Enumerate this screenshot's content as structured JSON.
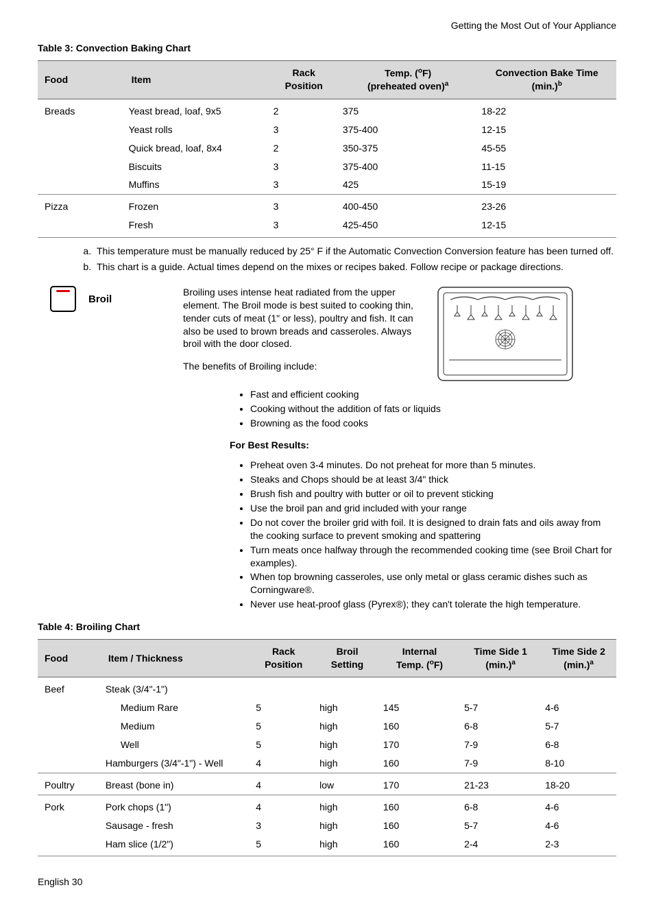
{
  "header": {
    "right": "Getting the Most Out of Your Appliance"
  },
  "table3": {
    "caption": "Table 3: Convection Baking Chart",
    "columns": [
      "Food",
      "Item",
      "Rack Position",
      "Temp. (°F) (preheated oven)",
      "Convection Bake Time (min.)"
    ],
    "col_sup": [
      "",
      "",
      "",
      "a",
      "b"
    ],
    "groups": [
      {
        "food": "Breads",
        "rows": [
          {
            "item": "Yeast bread, loaf, 9x5",
            "rack": "2",
            "temp": "375",
            "time": "18-22"
          },
          {
            "item": "Yeast rolls",
            "rack": "3",
            "temp": "375-400",
            "time": "12-15"
          },
          {
            "item": "Quick bread, loaf, 8x4",
            "rack": "2",
            "temp": "350-375",
            "time": "45-55"
          },
          {
            "item": "Biscuits",
            "rack": "3",
            "temp": "375-400",
            "time": "11-15"
          },
          {
            "item": "Muffins",
            "rack": "3",
            "temp": "425",
            "time": "15-19"
          }
        ]
      },
      {
        "food": "Pizza",
        "rows": [
          {
            "item": "Frozen",
            "rack": "3",
            "temp": "400-450",
            "time": "23-26"
          },
          {
            "item": "Fresh",
            "rack": "3",
            "temp": "425-450",
            "time": "12-15"
          }
        ]
      }
    ],
    "footnotes": [
      "This temperature must be manually reduced by 25° F if the Automatic Convection Conversion feature has been turned off.",
      "This chart is a guide. Actual times depend on the mixes or recipes baked. Follow recipe or package directions."
    ]
  },
  "broil": {
    "label": "Broil",
    "para1": "Broiling uses intense heat radiated from the upper element. The Broil mode is best suited to cooking thin, tender cuts of meat (1\" or less), poultry and fish. It can also be used to brown breads and casseroles. Always broil with the door closed.",
    "para2": "The benefits of Broiling include:",
    "benefits": [
      "Fast and efficient cooking",
      "Cooking without the addition of fats or liquids",
      "Browning as the food cooks"
    ],
    "best_heading": "For Best Results:",
    "best": [
      "Preheat oven 3-4 minutes. Do not preheat for more than 5 minutes.",
      "Steaks and Chops should be at least 3/4\" thick",
      "Brush fish and poultry with butter or oil to prevent sticking",
      "Use the broil pan and grid included with your range",
      "Do not cover the broiler grid with foil. It is designed to drain fats and oils away from the cooking surface to prevent smoking and spattering",
      "Turn meats once halfway through the recommended cooking time (see Broil Chart for examples).",
      "When top browning casseroles, use only metal or glass ceramic dishes such as Corningware®.",
      "Never use heat-proof glass (Pyrex®); they can't tolerate the high temperature."
    ]
  },
  "table4": {
    "caption": "Table 4: Broiling Chart",
    "columns": [
      "Food",
      "Item / Thickness",
      "Rack Position",
      "Broil Setting",
      "Internal Temp. (°F)",
      "Time Side 1 (min.)",
      "Time Side 2 (min.)"
    ],
    "col_sup": [
      "",
      "",
      "",
      "",
      "",
      "a",
      "a"
    ],
    "groups": [
      {
        "food": "Beef",
        "rows": [
          {
            "item": "Steak (3/4\"-1\")",
            "indent": false,
            "rack": "",
            "setting": "",
            "temp": "",
            "t1": "",
            "t2": ""
          },
          {
            "item": "Medium Rare",
            "indent": true,
            "rack": "5",
            "setting": "high",
            "temp": "145",
            "t1": "5-7",
            "t2": "4-6"
          },
          {
            "item": "Medium",
            "indent": true,
            "rack": "5",
            "setting": "high",
            "temp": "160",
            "t1": "6-8",
            "t2": "5-7"
          },
          {
            "item": "Well",
            "indent": true,
            "rack": "5",
            "setting": "high",
            "temp": "170",
            "t1": "7-9",
            "t2": "6-8"
          },
          {
            "item": "Hamburgers (3/4\"-1\") - Well",
            "indent": false,
            "rack": "4",
            "setting": "high",
            "temp": "160",
            "t1": "7-9",
            "t2": "8-10"
          }
        ]
      },
      {
        "food": "Poultry",
        "rows": [
          {
            "item": "Breast (bone in)",
            "indent": false,
            "rack": "4",
            "setting": "low",
            "temp": "170",
            "t1": "21-23",
            "t2": "18-20"
          }
        ]
      },
      {
        "food": "Pork",
        "rows": [
          {
            "item": "Pork chops (1\")",
            "indent": false,
            "rack": "4",
            "setting": "high",
            "temp": "160",
            "t1": "6-8",
            "t2": "4-6"
          },
          {
            "item": "Sausage - fresh",
            "indent": false,
            "rack": "3",
            "setting": "high",
            "temp": "160",
            "t1": "5-7",
            "t2": "4-6"
          },
          {
            "item": "Ham slice (1/2\")",
            "indent": false,
            "rack": "5",
            "setting": "high",
            "temp": "160",
            "t1": "2-4",
            "t2": "2-3"
          }
        ]
      }
    ]
  },
  "footer": {
    "left": "English 30"
  },
  "colors": {
    "header_bg": "#d9d9d9",
    "border": "#888888",
    "accent": "#d00000"
  }
}
